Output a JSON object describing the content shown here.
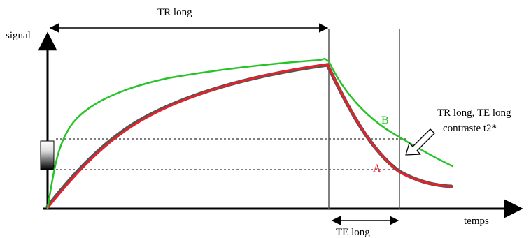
{
  "labels": {
    "y_axis": "signal",
    "x_axis": "temps",
    "tr_long": "TR long",
    "te_long": "TE long",
    "annotation_line1": "TR long, TE long",
    "annotation_line2": "contraste t2*"
  },
  "curves": [
    {
      "label": "A",
      "color": "#e8202a"
    },
    {
      "label": "B",
      "color": "#27c427"
    }
  ],
  "colors": {
    "axis": "#000000",
    "guide_dotted": "#555555",
    "vertical_line": "#555555",
    "shadow_curve": "#555555"
  }
}
